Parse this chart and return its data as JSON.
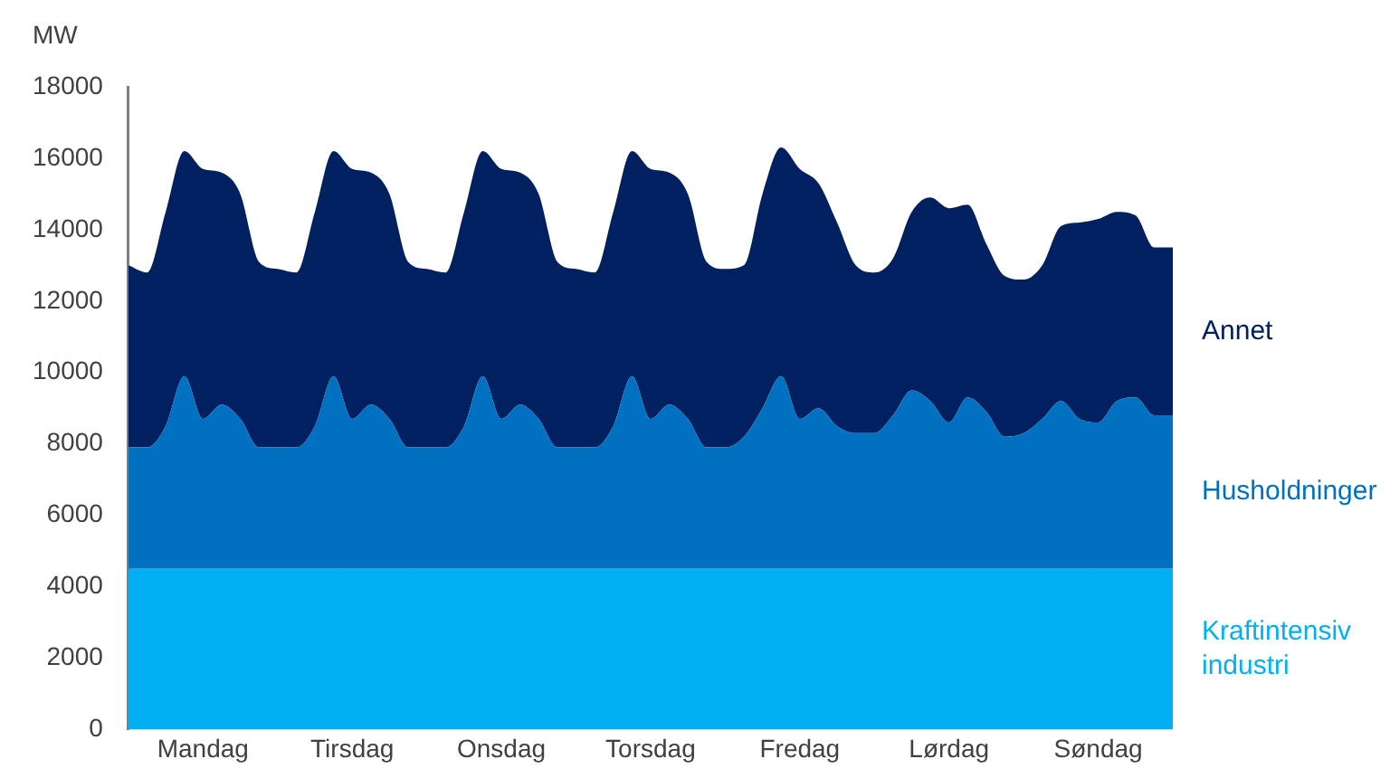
{
  "chart_data": {
    "type": "area",
    "stacked": true,
    "ylabel": "MW",
    "categories": [
      null,
      null,
      null,
      null,
      "Mandag",
      null,
      null,
      null,
      null,
      null,
      null,
      null,
      "Tirsdag",
      null,
      null,
      null,
      null,
      null,
      null,
      null,
      "Onsdag",
      null,
      null,
      null,
      null,
      null,
      null,
      null,
      "Torsdag",
      null,
      null,
      null,
      null,
      null,
      null,
      null,
      "Fredag",
      null,
      null,
      null,
      null,
      null,
      null,
      null,
      "Lørdag",
      null,
      null,
      null,
      null,
      null,
      null,
      null,
      "Søndag",
      null,
      null,
      null,
      null
    ],
    "ylim": [
      0,
      18000
    ],
    "yticks": [
      0,
      2000,
      4000,
      6000,
      8000,
      10000,
      12000,
      14000,
      16000,
      18000
    ],
    "grid": false,
    "legend": false,
    "series": [
      {
        "name": "Kraftintensiv industri",
        "color": "#00b0f0",
        "values": [
          4500,
          4500,
          4500,
          4500,
          4500,
          4500,
          4500,
          4500,
          4500,
          4500,
          4500,
          4500,
          4500,
          4500,
          4500,
          4500,
          4500,
          4500,
          4500,
          4500,
          4500,
          4500,
          4500,
          4500,
          4500,
          4500,
          4500,
          4500,
          4500,
          4500,
          4500,
          4500,
          4500,
          4500,
          4500,
          4500,
          4500,
          4500,
          4500,
          4500,
          4500,
          4500,
          4500,
          4500,
          4500,
          4500,
          4500,
          4500,
          4500,
          4500,
          4500,
          4500,
          4500,
          4500,
          4500,
          4500,
          4500
        ]
      },
      {
        "name": "Husholdninger",
        "color": "#0070c0",
        "values": [
          3400,
          3400,
          4000,
          5400,
          4200,
          4600,
          4200,
          3400,
          3400,
          3400,
          4000,
          5400,
          4200,
          4600,
          4200,
          3400,
          3400,
          3400,
          4000,
          5400,
          4200,
          4600,
          4200,
          3400,
          3400,
          3400,
          4000,
          5400,
          4200,
          4600,
          4200,
          3400,
          3400,
          3700,
          4500,
          5400,
          4200,
          4500,
          4000,
          3800,
          3800,
          4300,
          5000,
          4700,
          4100,
          4800,
          4400,
          3700,
          3800,
          4200,
          4700,
          4200,
          4100,
          4700,
          4800,
          4300,
          4300
        ]
      },
      {
        "name": "Annet",
        "color": "#002060",
        "values": [
          5100,
          4900,
          6000,
          6300,
          7000,
          6500,
          6300,
          5200,
          5000,
          4900,
          6000,
          6300,
          7000,
          6500,
          6300,
          5200,
          5000,
          4900,
          6000,
          6300,
          7000,
          6500,
          6300,
          5200,
          5000,
          4900,
          6000,
          6300,
          7000,
          6500,
          6300,
          5200,
          5000,
          4800,
          6000,
          6400,
          7000,
          6300,
          5700,
          4700,
          4500,
          4400,
          5000,
          5700,
          6000,
          5400,
          4700,
          4500,
          4300,
          4300,
          4900,
          5500,
          5700,
          5300,
          5100,
          4700,
          4700
        ]
      }
    ]
  }
}
